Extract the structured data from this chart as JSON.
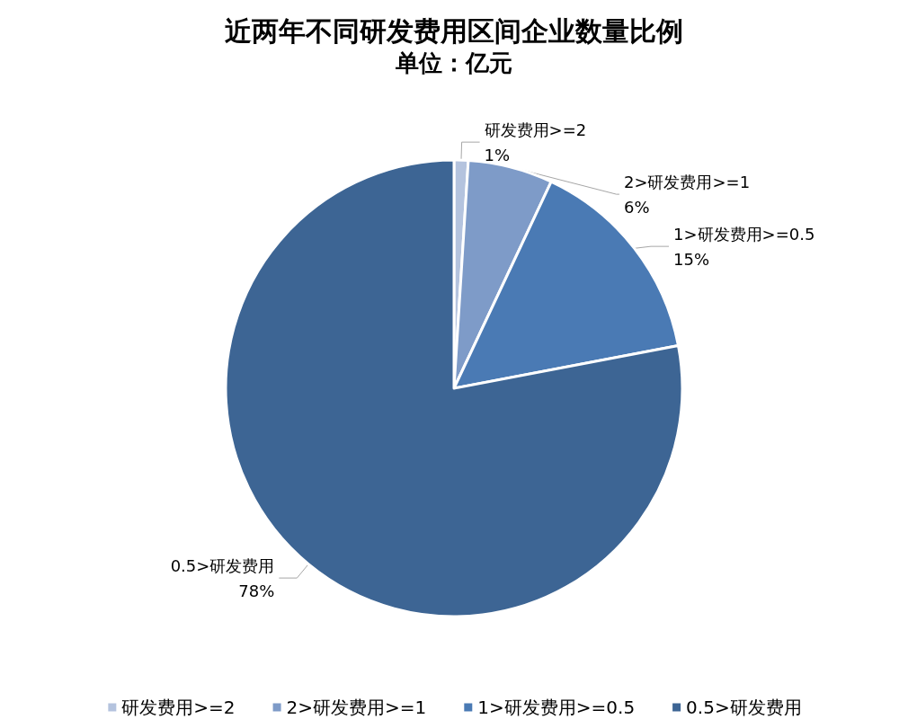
{
  "chart_data": {
    "type": "pie",
    "title": "近两年不同研发费用区间企业数量比例",
    "subtitle": "单位：亿元",
    "categories": [
      "研发费用>=2",
      "2>研发费用>=1",
      "1>研发费用>=0.5",
      "0.5>研发费用"
    ],
    "values": [
      1,
      6,
      15,
      78
    ],
    "colors": [
      "#b4c3de",
      "#7e9bc8",
      "#4a7ab4",
      "#3d6594"
    ],
    "value_labels": [
      "1%",
      "6%",
      "15%",
      "78%"
    ],
    "legend": "bottom"
  }
}
